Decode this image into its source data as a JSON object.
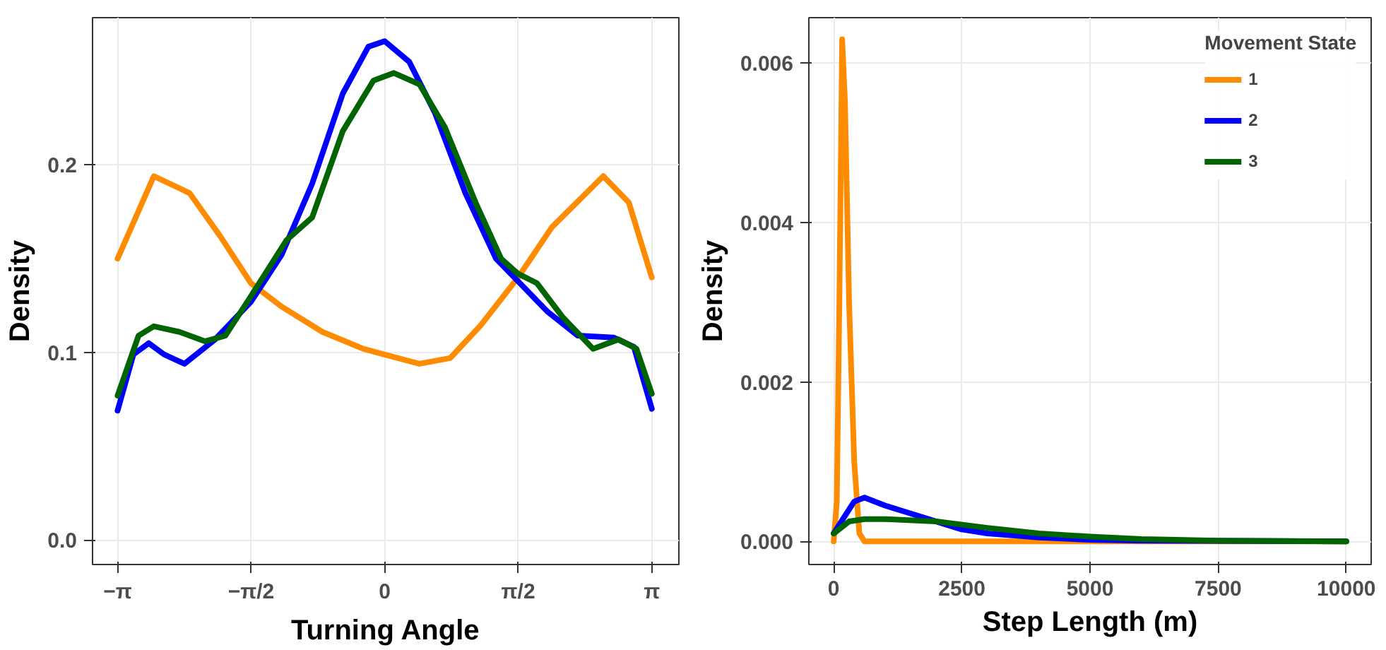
{
  "chart_data": [
    {
      "type": "line",
      "xlabel": "Turning Angle",
      "ylabel": "Density",
      "xlim": [
        -3.436,
        3.46
      ],
      "ylim": [
        -0.013,
        0.2785
      ],
      "xticks": [
        {
          "value": -3.1416,
          "label": "−π"
        },
        {
          "value": -1.5708,
          "label": "−π/2"
        },
        {
          "value": 0,
          "label": "0"
        },
        {
          "value": 1.5708,
          "label": "π/2"
        },
        {
          "value": 3.1416,
          "label": "π"
        }
      ],
      "yticks": [
        {
          "value": 0,
          "label": "0.0"
        },
        {
          "value": 0.1,
          "label": "0.1"
        },
        {
          "value": 0.2,
          "label": "0.2"
        }
      ],
      "grid": true,
      "legend": false,
      "series": [
        {
          "color": "#ff8c00",
          "x": [
            -3.1416,
            -2.715,
            -2.295,
            -1.934,
            -1.574,
            -1.213,
            -0.733,
            -0.252,
            0,
            0.408,
            0.769,
            1.129,
            1.568,
            1.97,
            2.571,
            2.871,
            3.1416
          ],
          "values": [
            0.15,
            0.194,
            0.185,
            0.162,
            0.137,
            0.1245,
            0.111,
            0.102,
            0.0989,
            0.094,
            0.097,
            0.1145,
            0.14,
            0.167,
            0.194,
            0.18,
            0.14
          ]
        },
        {
          "color": "#0000ff",
          "x": [
            -3.1416,
            -2.955,
            -2.775,
            -2.595,
            -2.355,
            -1.994,
            -1.574,
            -1.213,
            -0.853,
            -0.493,
            -0.192,
            0,
            0.288,
            0.589,
            0.949,
            1.31,
            1.568,
            1.91,
            2.271,
            2.691,
            2.931,
            3.1416
          ],
          "values": [
            0.069,
            0.099,
            0.105,
            0.099,
            0.094,
            0.107,
            0.127,
            0.152,
            0.19,
            0.238,
            0.263,
            0.266,
            0.255,
            0.228,
            0.185,
            0.15,
            0.138,
            0.122,
            0.109,
            0.108,
            0.103,
            0.07
          ]
        },
        {
          "color": "#006400",
          "x": [
            -3.1416,
            -2.895,
            -2.715,
            -2.415,
            -2.115,
            -1.874,
            -1.574,
            -1.153,
            -0.853,
            -0.493,
            -0.132,
            0.108,
            0.408,
            0.709,
            1.069,
            1.37,
            1.568,
            1.79,
            2.091,
            2.451,
            2.751,
            2.961,
            3.1416
          ],
          "values": [
            0.077,
            0.109,
            0.114,
            0.111,
            0.106,
            0.109,
            0.13,
            0.16,
            0.172,
            0.218,
            0.245,
            0.249,
            0.243,
            0.22,
            0.18,
            0.15,
            0.142,
            0.137,
            0.119,
            0.102,
            0.107,
            0.102,
            0.078
          ]
        }
      ]
    },
    {
      "type": "line",
      "xlabel": "Step Length (m)",
      "ylabel": "Density",
      "legend_title": "Movement State",
      "xlim": [
        -485,
        10485
      ],
      "ylim": [
        -0.00029,
        0.00657
      ],
      "xticks": [
        0,
        2500,
        5000,
        7500,
        10000
      ],
      "yticks": [
        {
          "value": 0,
          "label": "0.000"
        },
        {
          "value": 0.002,
          "label": "0.002"
        },
        {
          "value": 0.004,
          "label": "0.004"
        },
        {
          "value": 0.006,
          "label": "0.006"
        }
      ],
      "grid": true,
      "legend": "top right",
      "series": [
        {
          "name": "1",
          "color": "#ff8c00",
          "x": [
            0,
            60,
            110,
            165,
            220,
            300,
            400,
            500,
            600,
            10000
          ],
          "values": [
            0,
            0.0005,
            0.003,
            0.0063,
            0.0055,
            0.003,
            0.001,
            0.0001,
            0,
            0
          ]
        },
        {
          "name": "2",
          "color": "#0000ff",
          "x": [
            0,
            200,
            400,
            600,
            1000,
            1500,
            2000,
            2500,
            3000,
            4000,
            5000,
            6000,
            10000
          ],
          "values": [
            0.0001,
            0.0003,
            0.0005,
            0.00055,
            0.00045,
            0.00035,
            0.00025,
            0.00015,
            0.0001,
            5e-05,
            2e-05,
            1e-05,
            0
          ]
        },
        {
          "name": "3",
          "color": "#006400",
          "x": [
            0,
            300,
            600,
            1000,
            2000,
            3000,
            4000,
            5000,
            6000,
            7500,
            10000
          ],
          "values": [
            0.0001,
            0.00025,
            0.00028,
            0.00028,
            0.00025,
            0.00017,
            0.0001,
            6e-05,
            3e-05,
            1e-05,
            0
          ]
        }
      ]
    }
  ]
}
